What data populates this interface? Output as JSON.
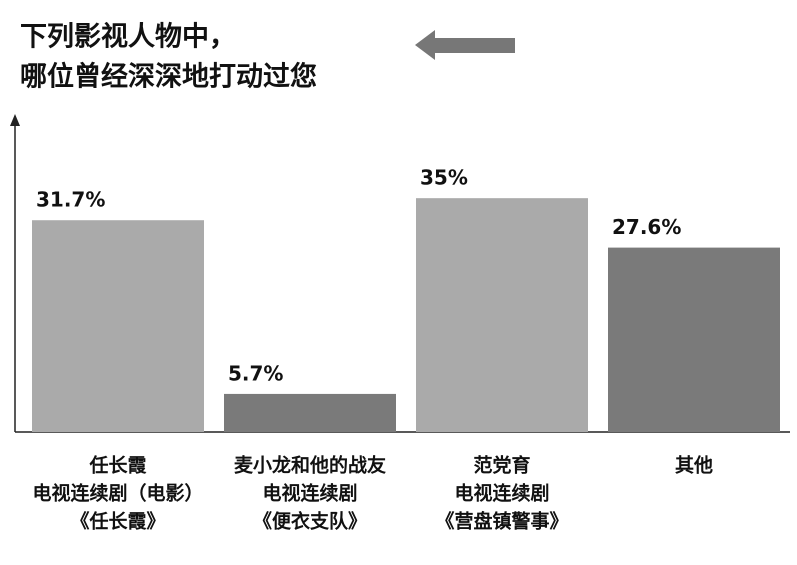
{
  "chart_data": {
    "type": "bar",
    "title": [
      "下列影视人物中，",
      "哪位曾经深深地打动过您"
    ],
    "categories": [
      [
        "任长霞",
        "电视连续剧（电影）",
        "《任长霞》"
      ],
      [
        "麦小龙和他的战友",
        "电视连续剧",
        "《便衣支队》"
      ],
      [
        "范党育",
        "电视连续剧",
        "《营盘镇警事》"
      ],
      [
        "其他"
      ]
    ],
    "values": [
      31.7,
      5.7,
      35,
      27.6
    ],
    "value_labels": [
      "31.7%",
      "5.7%",
      "35%",
      "27.6%"
    ],
    "colors": [
      "#aaaaaa",
      "#7a7a7a",
      "#aaaaaa",
      "#7a7a7a"
    ],
    "ylim": [
      0,
      47
    ]
  }
}
